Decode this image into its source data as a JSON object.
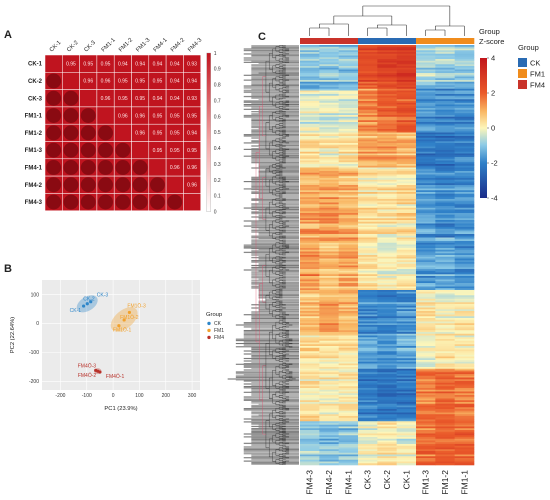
{
  "panels": {
    "a": "A",
    "b": "B",
    "c": "C"
  },
  "colors": {
    "corr_cell": "#c0141f",
    "corr_circle": "#8a0a12",
    "corr_low": "#ffffff",
    "hm_high": "#c1151b",
    "hm_mid": "#fdf6ba",
    "hm_low": "#1a2b88",
    "group_ck": "#2a6bb3",
    "group_fm1": "#f08c1c",
    "group_fm4": "#c9332a",
    "pca_ck": "#2e86c9",
    "pca_fm1": "#f2a12b",
    "pca_fm4": "#b8312a"
  },
  "chart_data": [
    {
      "type": "heatmap",
      "panel": "A",
      "samples": [
        "CK-1",
        "CK-2",
        "CK-3",
        "FM1-1",
        "FM1-2",
        "FM1-3",
        "FM4-1",
        "FM4-2",
        "FM4-3"
      ],
      "upper_values": [
        [
          "0.95",
          "0.95",
          "0.95",
          "0.94",
          "0.94",
          "0.94",
          "0.94",
          "0.93"
        ],
        [
          "0.96",
          "0.96",
          "0.95",
          "0.95",
          "0.95",
          "0.94",
          "0.94"
        ],
        [
          "0.96",
          "0.95",
          "0.95",
          "0.94",
          "0.94",
          "0.93"
        ],
        [
          "0.96",
          "0.96",
          "0.95",
          "0.95",
          "0.95"
        ],
        [
          "0.96",
          "0.95",
          "0.95",
          "0.94"
        ],
        [
          "0.95",
          "0.95",
          "0.95"
        ],
        [
          "0.96",
          "0.96"
        ],
        [
          "0.96"
        ]
      ],
      "colorbar": {
        "ticks": [
          "1",
          "0.9",
          "0.8",
          "0.7",
          "0.6",
          "0.5",
          "0.4",
          "0.3",
          "0.2",
          "0.1",
          "0"
        ]
      }
    },
    {
      "type": "scatter",
      "panel": "B",
      "xlabel": "PC1 (23.9%)",
      "ylabel": "PC2 (22.64%)",
      "xlim": [
        -270,
        330
      ],
      "ylim": [
        -230,
        150
      ],
      "xticks": [
        "-200",
        "-100",
        "0",
        "100",
        "200",
        "300"
      ],
      "yticks": [
        "100",
        "0",
        "-100",
        "-200"
      ],
      "legend_title": "Group",
      "series": [
        {
          "name": "CK",
          "point_labels": [
            "CK-1",
            "CK-2",
            "CK-3"
          ],
          "x": [
            -112,
            -98,
            -85
          ],
          "y": [
            60,
            68,
            75
          ]
        },
        {
          "name": "FM1",
          "point_labels": [
            "FM1Ö-1",
            "FM1Ö-2",
            "FM1Ö-3"
          ],
          "x": [
            22,
            42,
            62
          ],
          "y": [
            -8,
            12,
            38
          ]
        },
        {
          "name": "FM4",
          "point_labels": [
            "FM4Ö-1",
            "FM4Ö-2",
            "FM4Ö-3"
          ],
          "x": [
            -50,
            -58,
            -66
          ],
          "y": [
            -168,
            -165,
            -162
          ]
        }
      ]
    },
    {
      "type": "heatmap",
      "panel": "C",
      "columns": [
        "FM4-3",
        "FM4-2",
        "FM4-1",
        "CK-3",
        "CK-2",
        "CK-1",
        "FM1-3",
        "FM1-2",
        "FM1-1"
      ],
      "column_groups": [
        "FM4",
        "FM4",
        "FM4",
        "CK",
        "CK",
        "CK",
        "FM1",
        "FM1",
        "FM1"
      ],
      "group_label": "Group",
      "colorbar_title": "Z-score",
      "colorbar_ticks": [
        "4",
        "2",
        "0",
        "-2",
        "-4"
      ],
      "zlim": [
        -4,
        4
      ],
      "legend_title": "Group",
      "legend_items": [
        "CK",
        "FM1",
        "FM4"
      ],
      "row_blocks": [
        {
          "rows": 25,
          "z": [
            -1.1,
            -1.0,
            -1.0,
            2.4,
            2.7,
            2.8,
            -0.8,
            -0.9,
            -1.0
          ]
        },
        {
          "rows": 25,
          "z": [
            -0.3,
            -0.5,
            -0.4,
            1.4,
            1.8,
            2.0,
            -1.8,
            -2.0,
            -1.9
          ]
        },
        {
          "rows": 20,
          "z": [
            0.2,
            0.1,
            0.3,
            1.0,
            1.1,
            0.9,
            -2.2,
            -2.3,
            -2.1
          ]
        },
        {
          "rows": 40,
          "z": [
            1.1,
            1.2,
            1.0,
            0.3,
            0.2,
            0.4,
            -1.7,
            -1.9,
            -1.8
          ]
        },
        {
          "rows": 30,
          "z": [
            1.2,
            0.9,
            1.1,
            0.2,
            -0.1,
            0.1,
            -1.6,
            -1.5,
            -1.7
          ]
        },
        {
          "rows": 25,
          "z": [
            0.8,
            1.2,
            0.9,
            -1.9,
            -2.0,
            -1.8,
            0.2,
            0.0,
            0.1
          ]
        },
        {
          "rows": 20,
          "z": [
            0.4,
            0.2,
            0.3,
            -1.5,
            -1.7,
            -1.4,
            -0.2,
            0.3,
            0.1
          ]
        },
        {
          "rows": 30,
          "z": [
            0.3,
            0.1,
            0.2,
            -2.1,
            -2.3,
            -2.2,
            1.6,
            1.8,
            1.7
          ]
        },
        {
          "rows": 25,
          "z": [
            -1.0,
            -1.2,
            -1.1,
            -0.1,
            0.1,
            -0.2,
            1.7,
            1.9,
            1.8
          ]
        }
      ]
    }
  ]
}
